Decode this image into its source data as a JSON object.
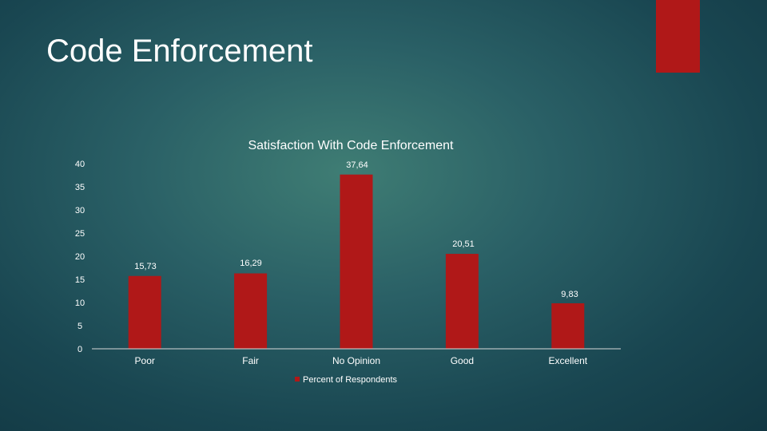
{
  "slide": {
    "title": "Code Enforcement",
    "accent_color": "#b01818"
  },
  "chart_data": {
    "type": "bar",
    "title": "Satisfaction With Code Enforcement",
    "categories": [
      "Poor",
      "Fair",
      "No Opinion",
      "Good",
      "Excellent"
    ],
    "series": [
      {
        "name": "Percent of Respondents",
        "values": [
          15.73,
          16.29,
          37.64,
          20.51,
          9.83
        ],
        "color": "#b01818"
      }
    ],
    "data_labels": [
      "15,73",
      "16,29",
      "37,64",
      "20,51",
      "9,83"
    ],
    "y_ticks": [
      0,
      5,
      10,
      15,
      20,
      25,
      30,
      35,
      40
    ],
    "ylim": [
      0,
      40
    ],
    "grid": false,
    "legend_position": "bottom"
  }
}
